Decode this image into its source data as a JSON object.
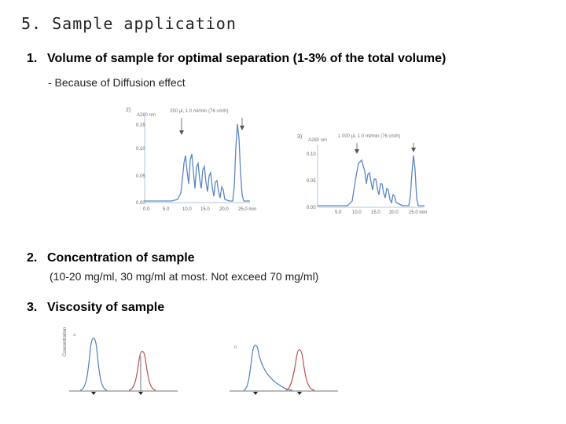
{
  "slide": {
    "title": "5. Sample application",
    "items": [
      {
        "number": "1.",
        "text": "Volume of sample for optimal separation (1-3% of the total volume)",
        "note": "- Because of  Diffusion effect"
      },
      {
        "number": "2.",
        "text": "Concentration of sample",
        "note": "(10-20 mg/ml, 30 mg/ml at most. Not exceed 70 mg/ml)"
      },
      {
        "number": "3.",
        "text": "Viscosity of sample"
      }
    ]
  },
  "figure_left": {
    "panel": "2)",
    "ylabel": "A280 nm",
    "condition": "250 µl, 1.0 ml/min (76 cm/h)",
    "yticks": [
      "0.15",
      "0.10",
      "0.05",
      "0.00"
    ],
    "xticks": [
      "0.0",
      "5.0",
      "10.0",
      "15.0",
      "20.0",
      "25.0 min"
    ]
  },
  "figure_right": {
    "panel": "3)",
    "ylabel": "A280 nm",
    "condition": "1 000 µl, 1.0 ml/min (76 cm/h)",
    "yticks": [
      "0.10",
      "0.05",
      "0.00"
    ],
    "xticks": [
      "5.0",
      "10.0",
      "15.0",
      "20.0",
      "25.0 min"
    ]
  },
  "viscosity": {
    "ylabel": "Concentration",
    "colors": {
      "blue": "#4f7fc0",
      "red": "#c0504d"
    }
  }
}
